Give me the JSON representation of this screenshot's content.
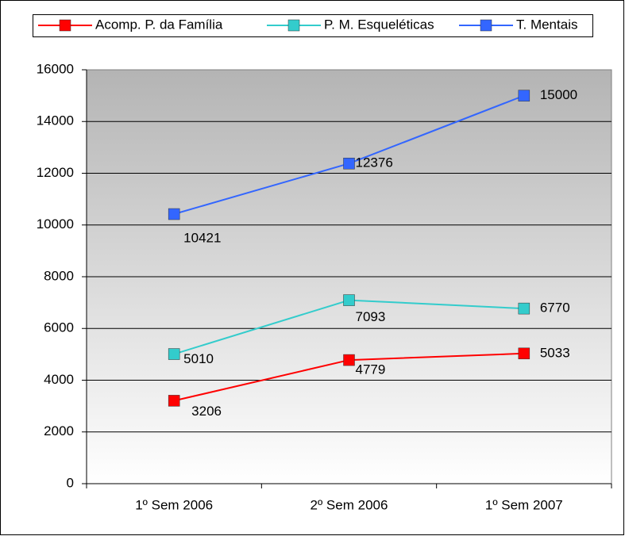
{
  "chart_data": {
    "type": "line",
    "categories": [
      "1º Sem 2006",
      "2º Sem 2006",
      "1º Sem 2007"
    ],
    "series": [
      {
        "name": "Acomp. P. da Família",
        "color": "#ff0000",
        "values": [
          3206,
          4779,
          5033
        ]
      },
      {
        "name": "P. M. Esqueléticas",
        "color": "#33cccc",
        "values": [
          5010,
          7093,
          6770
        ]
      },
      {
        "name": "T. Mentais",
        "color": "#3366ff",
        "values": [
          10421,
          12376,
          15000
        ]
      }
    ],
    "ylim": [
      0,
      16000
    ],
    "yticks": [
      0,
      2000,
      4000,
      6000,
      8000,
      10000,
      12000,
      14000,
      16000
    ],
    "grid": true,
    "legend": "top",
    "data_labels": true
  }
}
